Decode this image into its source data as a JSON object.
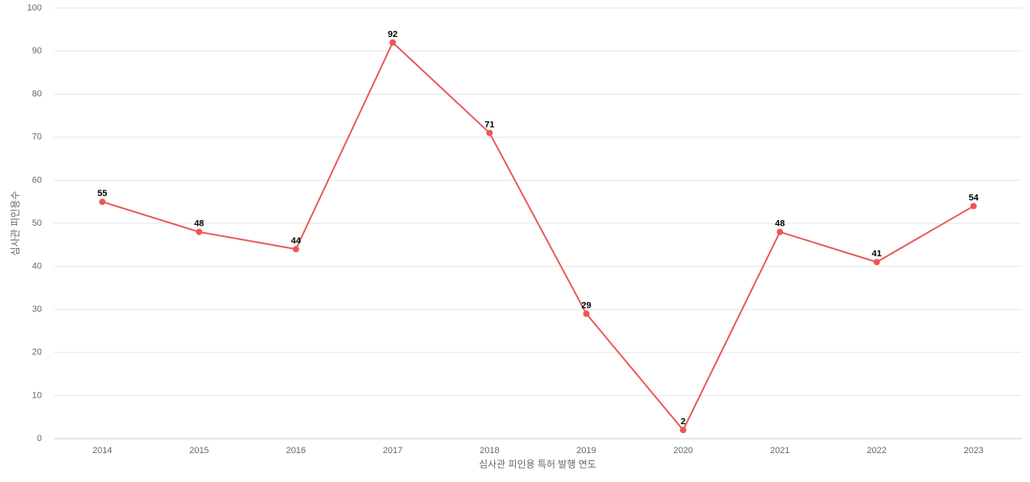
{
  "chart_data": {
    "type": "line",
    "x_label": "심사관 피인용 특허 발행 연도",
    "y_label": "심사관 피인용수",
    "categories": [
      "2014",
      "2015",
      "2016",
      "2017",
      "2018",
      "2019",
      "2020",
      "2021",
      "2022",
      "2023"
    ],
    "values": [
      55,
      48,
      44,
      92,
      71,
      29,
      2,
      48,
      41,
      54
    ],
    "color": "#eb5757",
    "ylim": [
      0,
      100
    ],
    "yticks": [
      0,
      10,
      20,
      30,
      40,
      50,
      60,
      70,
      80,
      90,
      100
    ],
    "grid": true
  }
}
